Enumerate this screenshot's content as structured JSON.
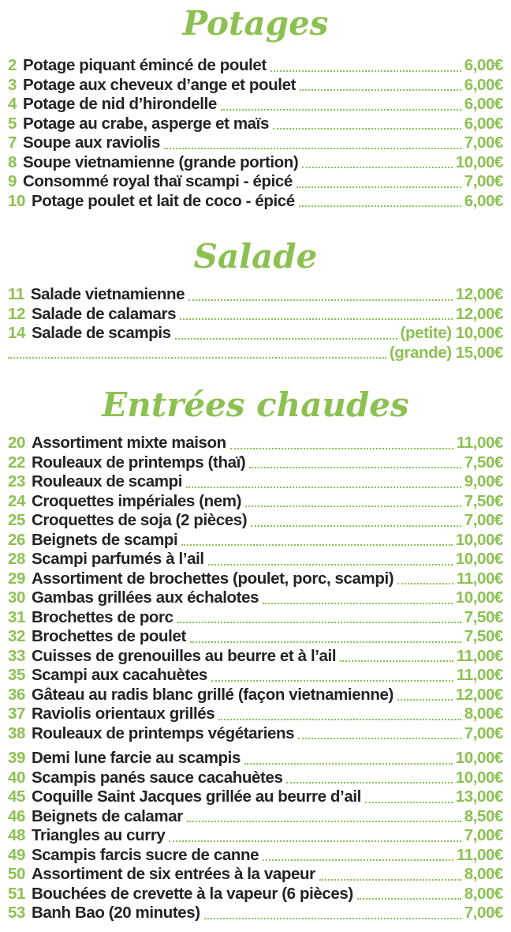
{
  "theme": {
    "accent_green": "#8CC152",
    "text_color": "#262223",
    "background": "#FFFFFF"
  },
  "sections": [
    {
      "title": "Potages",
      "items": [
        {
          "num": "2",
          "name": "Potage piquant émincé de poulet",
          "price": "6,00€"
        },
        {
          "num": "3",
          "name": "Potage aux cheveux d’ange et poulet",
          "price": "6,00€"
        },
        {
          "num": "4",
          "name": "Potage de nid d’hirondelle",
          "price": "6,00€"
        },
        {
          "num": "5",
          "name": "Potage au crabe, asperge et maïs",
          "price": "6,00€"
        },
        {
          "num": "7",
          "name": "Soupe aux raviolis",
          "price": "7,00€"
        },
        {
          "num": "8",
          "name": "Soupe vietnamienne (grande portion)",
          "price": "10,00€"
        },
        {
          "num": "9",
          "name": "Consommé royal thaï scampi - épicé",
          "price": "7,00€"
        },
        {
          "num": "10",
          "name": "Potage poulet et lait de coco - épicé",
          "price": "6,00€"
        }
      ]
    },
    {
      "title": "Salade",
      "items": [
        {
          "num": "11",
          "name": "Salade vietnamienne",
          "price": "12,00€"
        },
        {
          "num": "12",
          "name": "Salade de calamars",
          "price": "12,00€"
        },
        {
          "num": "14",
          "name": "Salade de scampis",
          "size_label": "(petite)",
          "price": "10,00€"
        },
        {
          "num": "",
          "name": "",
          "size_label": "(grande)",
          "price": "15,00€",
          "continuation": true
        }
      ]
    },
    {
      "title": "Entrées chaudes",
      "items": [
        {
          "num": "20",
          "name": "Assortiment mixte maison",
          "price": "11,00€"
        },
        {
          "num": "22",
          "name": "Rouleaux de printemps (thaï)",
          "price": "7,50€"
        },
        {
          "num": "23",
          "name": "Rouleaux de scampi",
          "price": "9,00€"
        },
        {
          "num": "24",
          "name": "Croquettes impériales (nem)",
          "price": "7,50€"
        },
        {
          "num": "25",
          "name": "Croquettes de soja (2 pièces)",
          "price": "7,00€"
        },
        {
          "num": "26",
          "name": "Beignets de scampi",
          "price": "10,00€"
        },
        {
          "num": "28",
          "name": "Scampi parfumés à l’ail",
          "price": "10,00€"
        },
        {
          "num": "29",
          "name": "Assortiment de brochettes (poulet, porc, scampi)",
          "price": "11,00€"
        },
        {
          "num": "30",
          "name": "Gambas grillées aux échalotes",
          "price": "10,00€"
        },
        {
          "num": "31",
          "name": "Brochettes de porc",
          "price": "7,50€"
        },
        {
          "num": "32",
          "name": "Brochettes de poulet",
          "price": "7,50€"
        },
        {
          "num": "33",
          "name": "Cuisses de grenouilles au beurre et à l’ail",
          "price": "11,00€"
        },
        {
          "num": "35",
          "name": "Scampi aux cacahuètes",
          "price": "11,00€"
        },
        {
          "num": "36",
          "name": "Gâteau au radis blanc grillé (façon vietnamienne)",
          "price": "12,00€"
        },
        {
          "num": "37",
          "name": "Raviolis orientaux grillés",
          "price": "8,00€"
        },
        {
          "num": "38",
          "name": "Rouleaux de printemps végétariens",
          "price": "7,00€"
        },
        {
          "num": "39",
          "name": "Demi lune farcie au scampis",
          "price": "10,00€",
          "gap_before": true
        },
        {
          "num": "40",
          "name": "Scampis panés sauce cacahuètes",
          "price": "10,00€"
        },
        {
          "num": "45",
          "name": "Coquille Saint Jacques grillée au beurre d’ail",
          "price": "13,00€"
        },
        {
          "num": "46",
          "name": "Beignets de calamar",
          "price": "8,50€"
        },
        {
          "num": "48",
          "name": "Triangles au curry",
          "price": "7,00€"
        },
        {
          "num": "49",
          "name": "Scampis farcis sucre de canne",
          "price": "11,00€"
        },
        {
          "num": "50",
          "name": "Assortiment de six entrées à la vapeur",
          "price": "8,00€"
        },
        {
          "num": "51",
          "name": "Bouchées de crevette à la vapeur (6 pièces)",
          "price": "8,00€"
        },
        {
          "num": "53",
          "name": "Banh Bao (20 minutes)",
          "price": "7,00€"
        }
      ]
    }
  ]
}
